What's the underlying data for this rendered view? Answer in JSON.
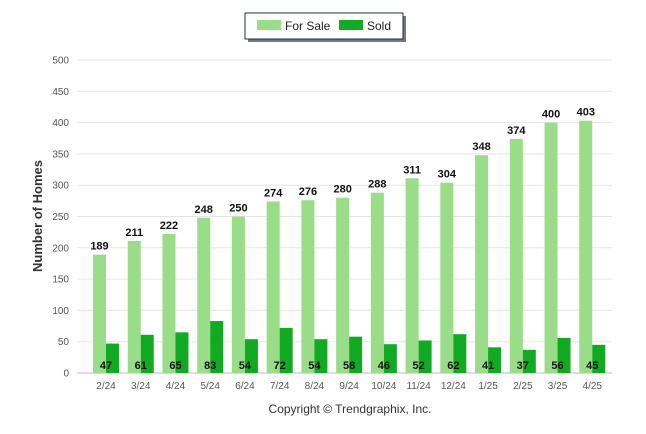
{
  "chart_data": {
    "type": "bar",
    "categories": [
      "2/24",
      "3/24",
      "4/24",
      "5/24",
      "6/24",
      "7/24",
      "8/24",
      "9/24",
      "10/24",
      "11/24",
      "12/24",
      "1/25",
      "2/25",
      "3/25",
      "4/25"
    ],
    "series": [
      {
        "name": "For Sale",
        "color": "#99dd88",
        "values": [
          189,
          211,
          222,
          248,
          250,
          274,
          276,
          280,
          288,
          311,
          304,
          348,
          374,
          400,
          403
        ]
      },
      {
        "name": "Sold",
        "color": "#11aa22",
        "values": [
          47,
          61,
          65,
          83,
          54,
          72,
          54,
          58,
          46,
          52,
          62,
          41,
          37,
          56,
          45
        ]
      }
    ],
    "ylabel": "Number of Homes",
    "xlabel": "",
    "ylim": [
      0,
      500
    ],
    "yticks": [
      0,
      50,
      100,
      150,
      200,
      250,
      300,
      350,
      400,
      450,
      500
    ],
    "grid": true,
    "legend": "top-center"
  },
  "credit": "Copyright © Trendgraphix, Inc."
}
